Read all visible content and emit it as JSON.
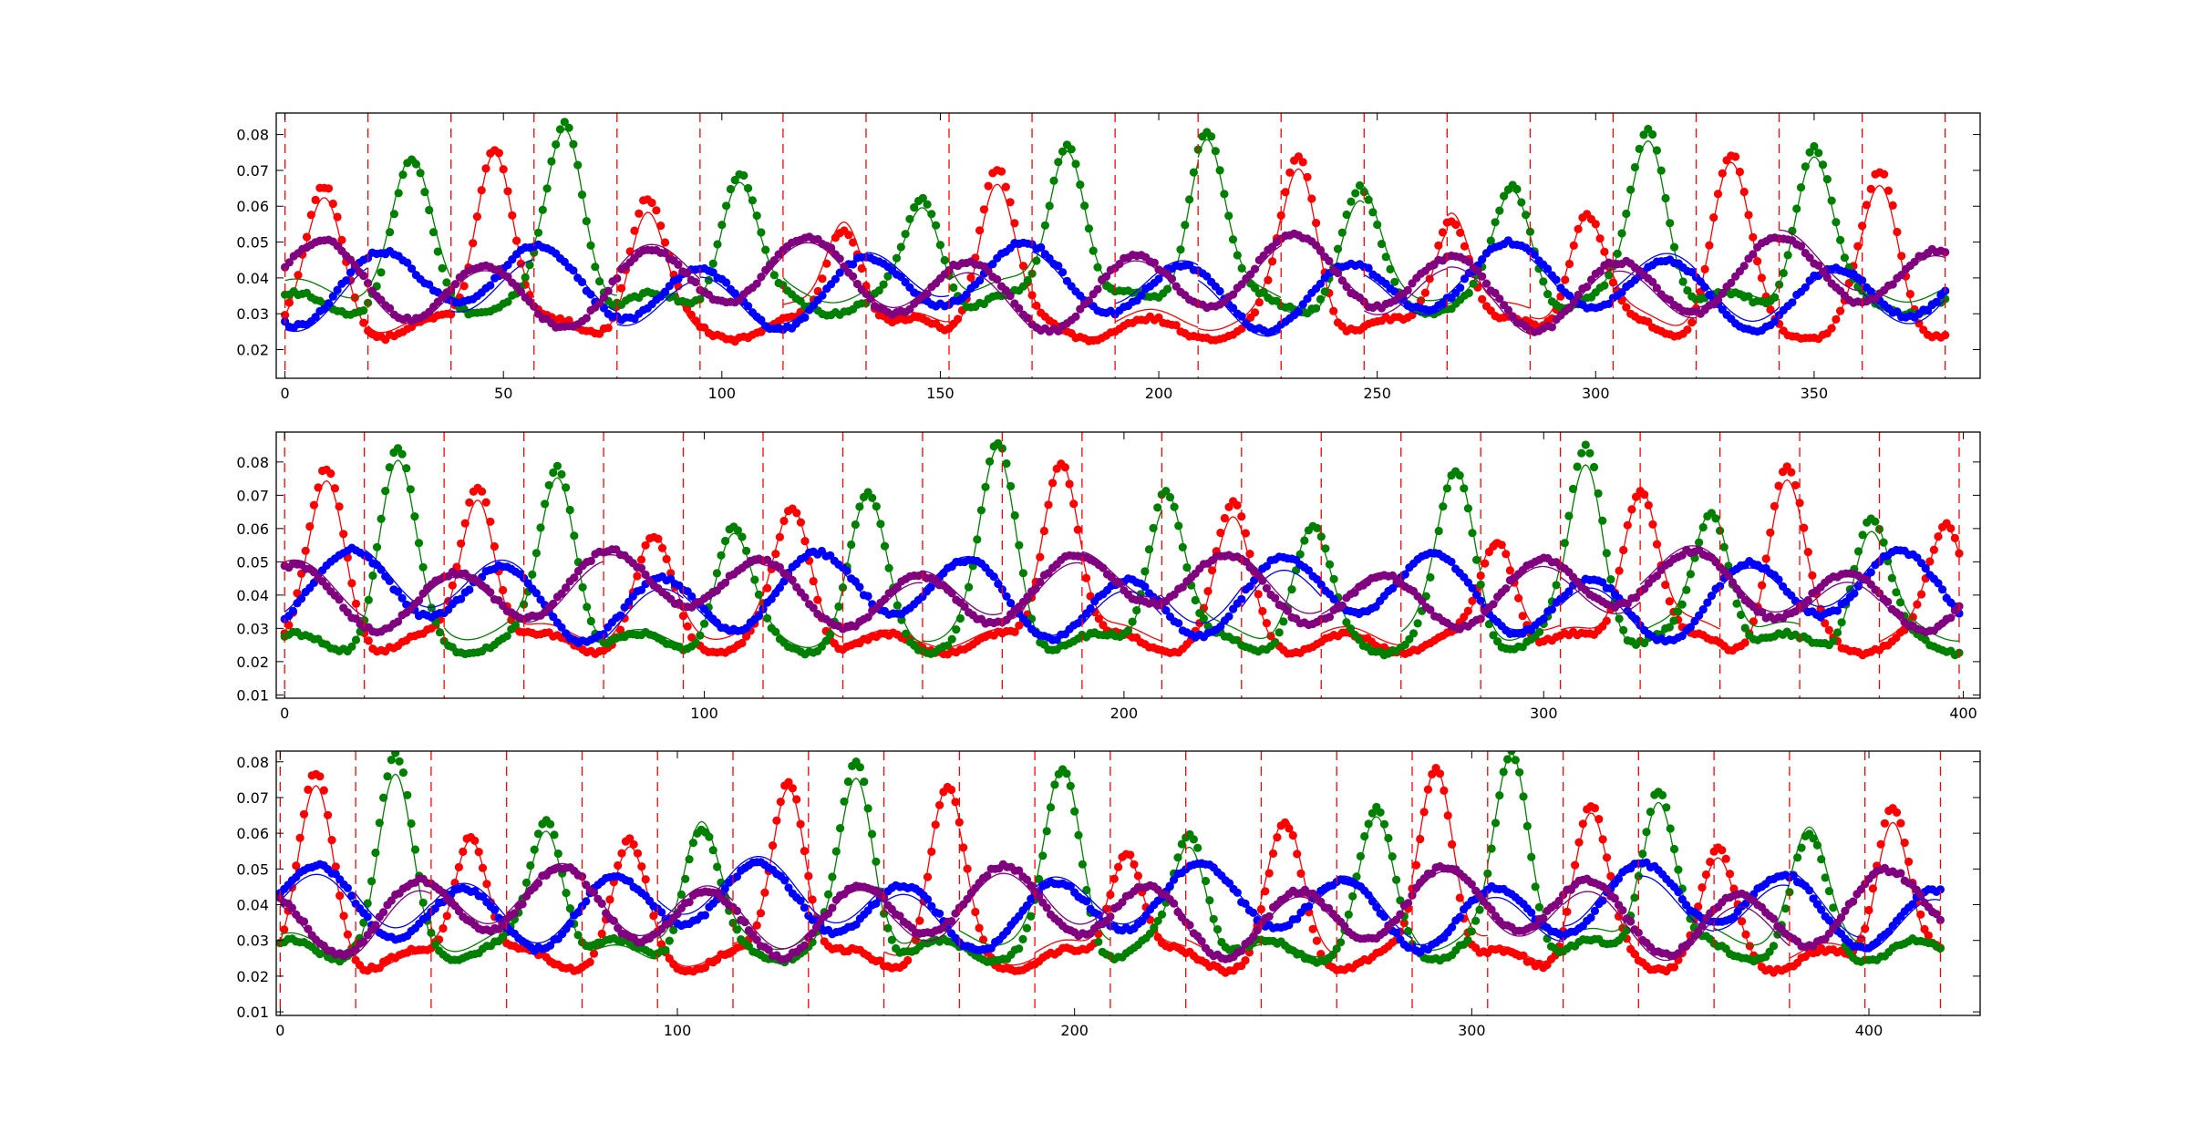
{
  "chart_data": [
    {
      "type": "scatter",
      "xlim": [
        -2,
        388
      ],
      "ylim": [
        0.012,
        0.086
      ],
      "xticks": [
        0,
        50,
        100,
        150,
        200,
        250,
        300,
        350
      ],
      "yticks": [
        0.02,
        0.03,
        0.04,
        0.05,
        0.06,
        0.07,
        0.08
      ],
      "xtick_labels": [
        "0",
        "50",
        "100",
        "150",
        "200",
        "250",
        "300",
        "350"
      ],
      "ytick_labels": [
        "0.02",
        "0.03",
        "0.04",
        "0.05",
        "0.06",
        "0.07",
        "0.08"
      ],
      "segment_boundaries": [
        0,
        19,
        38,
        57,
        76,
        95,
        114,
        133,
        152,
        171,
        190,
        209,
        228,
        247,
        266,
        285,
        304,
        323,
        342,
        361,
        380
      ],
      "red_peak_x": [
        9,
        48,
        83,
        128,
        163,
        232,
        267,
        298,
        331,
        365
      ],
      "green_peak_x": [
        29,
        64,
        104,
        146,
        179,
        211,
        246,
        281,
        312,
        350
      ],
      "grid": false,
      "legend": "none",
      "series": [
        {
          "color": "#ff0000",
          "style": "dots + fitted line",
          "range": [
            0.016,
            0.076
          ]
        },
        {
          "color": "#008000",
          "style": "dots + fitted line",
          "range": [
            0.029,
            0.083
          ]
        },
        {
          "color": "#0000ff",
          "style": "dots + fitted line",
          "range": [
            0.024,
            0.051
          ]
        },
        {
          "color": "#800080",
          "style": "dots + fitted line",
          "range": [
            0.024,
            0.053
          ]
        }
      ]
    },
    {
      "type": "scatter",
      "xlim": [
        -2,
        404
      ],
      "ylim": [
        0.009,
        0.089
      ],
      "xticks": [
        0,
        100,
        200,
        300,
        400
      ],
      "yticks": [
        0.01,
        0.02,
        0.03,
        0.04,
        0.05,
        0.06,
        0.07,
        0.08
      ],
      "xtick_labels": [
        "0",
        "100",
        "200",
        "300",
        "400"
      ],
      "ytick_labels": [
        "0.01",
        "0.02",
        "0.03",
        "0.04",
        "0.05",
        "0.06",
        "0.07",
        "0.08"
      ],
      "segment_boundaries": [
        0,
        19,
        38,
        57,
        76,
        95,
        114,
        133,
        152,
        171,
        190,
        209,
        228,
        247,
        266,
        285,
        304,
        323,
        342,
        361,
        380,
        399
      ],
      "red_peak_x": [
        10,
        46,
        88,
        121,
        185,
        226,
        289,
        323,
        358,
        396
      ],
      "green_peak_x": [
        27,
        65,
        107,
        139,
        170,
        210,
        245,
        279,
        310,
        340,
        378
      ],
      "grid": false,
      "legend": "none",
      "series": [
        {
          "color": "#ff0000",
          "style": "dots + fitted line",
          "range": [
            0.014,
            0.08
          ]
        },
        {
          "color": "#008000",
          "style": "dots + fitted line",
          "range": [
            0.014,
            0.086
          ]
        },
        {
          "color": "#0000ff",
          "style": "dots + fitted line",
          "range": [
            0.024,
            0.055
          ]
        },
        {
          "color": "#800080",
          "style": "dots + fitted line",
          "range": [
            0.028,
            0.055
          ]
        }
      ]
    },
    {
      "type": "scatter",
      "xlim": [
        -1,
        428
      ],
      "ylim": [
        0.009,
        0.083
      ],
      "xticks": [
        0,
        100,
        200,
        300,
        400
      ],
      "yticks": [
        0.01,
        0.02,
        0.03,
        0.04,
        0.05,
        0.06,
        0.07,
        0.08
      ],
      "xtick_labels": [
        "0",
        "100",
        "200",
        "300",
        "400"
      ],
      "ytick_labels": [
        "0.01",
        "0.02",
        "0.03",
        "0.04",
        "0.05",
        "0.06",
        "0.07",
        "0.08"
      ],
      "segment_boundaries": [
        0,
        19,
        38,
        57,
        76,
        95,
        114,
        133,
        152,
        171,
        190,
        209,
        228,
        247,
        266,
        285,
        304,
        323,
        342,
        361,
        380,
        399,
        418
      ],
      "red_peak_x": [
        9,
        48,
        88,
        128,
        168,
        213,
        253,
        291,
        330,
        362,
        406
      ],
      "green_peak_x": [
        29,
        67,
        106,
        145,
        197,
        229,
        276,
        310,
        347,
        385
      ],
      "grid": false,
      "legend": "none",
      "series": [
        {
          "color": "#ff0000",
          "style": "dots + fitted line",
          "range": [
            0.012,
            0.078
          ]
        },
        {
          "color": "#008000",
          "style": "dots + fitted line",
          "range": [
            0.017,
            0.083
          ]
        },
        {
          "color": "#0000ff",
          "style": "dots + fitted line",
          "range": [
            0.026,
            0.053
          ]
        },
        {
          "color": "#800080",
          "style": "dots + fitted line",
          "range": [
            0.024,
            0.052
          ]
        }
      ]
    }
  ]
}
